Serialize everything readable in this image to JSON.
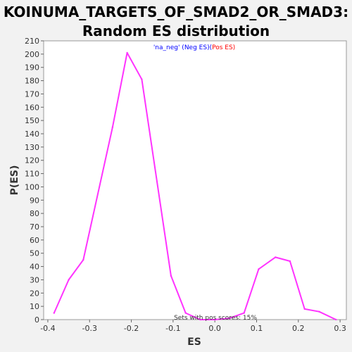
{
  "title_lines": [
    "KOINUMA_TARGETS_OF_SMAD2_OR_SMAD3:",
    "Random ES distribution"
  ],
  "chart_data": {
    "type": "line",
    "title": "KOINUMA_TARGETS_OF_SMAD2_OR_SMAD3: Random ES distribution",
    "xlabel": "ES",
    "ylabel": "P(ES)",
    "xlim": [
      -0.41,
      0.315
    ],
    "ylim": [
      0,
      210
    ],
    "xticks": [
      -0.4,
      -0.3,
      -0.2,
      -0.1,
      0.0,
      0.1,
      0.2,
      0.3
    ],
    "xtick_labels": [
      "-0.4",
      "-0.3",
      "-0.2",
      "-0.1",
      "0.0",
      "0.1",
      "0.2",
      "0.3"
    ],
    "yticks": [
      0,
      10,
      20,
      30,
      40,
      50,
      60,
      70,
      80,
      90,
      100,
      110,
      120,
      130,
      140,
      150,
      160,
      170,
      180,
      190,
      200,
      210
    ],
    "grid": false,
    "legend": {
      "placement": "top-center",
      "parts": [
        {
          "text": "'na_neg' (",
          "color": "#0000ff"
        },
        {
          "text": "Neg ES",
          "color": "#0000ff"
        },
        {
          "text": ")(",
          "color": "#0000ff"
        },
        {
          "text": "Pos ES",
          "color": "#ff0000"
        },
        {
          "text": ")",
          "color": "#ff0000"
        }
      ]
    },
    "annotation": "Sets with pos scores: 15%",
    "series": [
      {
        "color": "#ff33ff",
        "x": [
          -0.385,
          -0.35,
          -0.315,
          -0.245,
          -0.21,
          -0.175,
          -0.105,
          -0.07,
          -0.035,
          0.0,
          0.035,
          0.07,
          0.105,
          0.145,
          0.18,
          0.215,
          0.25,
          0.29
        ],
        "y": [
          5,
          30,
          45,
          145,
          201,
          181,
          33,
          5,
          0,
          0,
          1,
          5,
          38,
          47,
          44,
          8,
          6,
          0
        ]
      }
    ]
  }
}
